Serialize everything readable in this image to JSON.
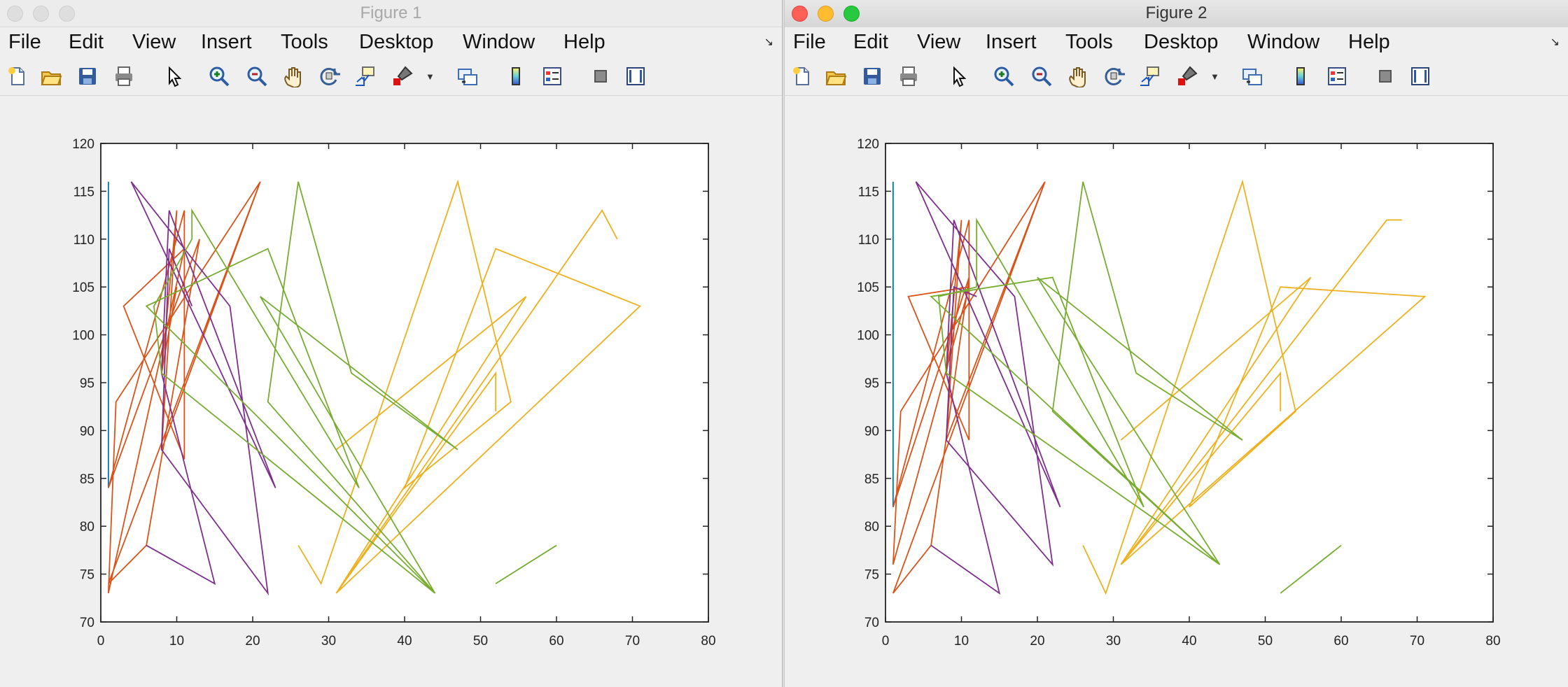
{
  "figures": [
    {
      "title": "Figure 1",
      "active": false,
      "menu": [
        "File",
        "Edit",
        "View",
        "Insert",
        "Tools",
        "Desktop",
        "Window",
        "Help"
      ]
    },
    {
      "title": "Figure 2",
      "active": true,
      "menu": [
        "File",
        "Edit",
        "View",
        "Insert",
        "Tools",
        "Desktop",
        "Window",
        "Help"
      ]
    }
  ],
  "toolbar_icons": [
    "new-figure-icon",
    "open-file-icon",
    "save-icon",
    "print-icon",
    "edit-plot-icon",
    "zoom-in-icon",
    "zoom-out-icon",
    "pan-icon",
    "rotate-3d-icon",
    "data-cursor-icon",
    "brush-icon",
    "link-plot-icon",
    "colorbar-icon",
    "legend-icon",
    "hide-plot-tools-icon",
    "show-plot-tools-icon"
  ],
  "colors": {
    "blue": "#0072bd",
    "red": "#d95319",
    "yellow": "#edb120",
    "purple": "#7e2f8e",
    "green": "#77ac30"
  },
  "chart_data": [
    {
      "type": "line",
      "xlim": [
        0,
        80
      ],
      "ylim": [
        70,
        120
      ],
      "xticks": [
        0,
        10,
        20,
        30,
        40,
        50,
        60,
        70,
        80
      ],
      "yticks": [
        70,
        75,
        80,
        85,
        90,
        95,
        100,
        105,
        110,
        115,
        120
      ],
      "grid": false,
      "series": [
        {
          "color": "blue",
          "points": [
            [
              1,
              116
            ],
            [
              1,
              84
            ]
          ]
        },
        {
          "color": "red",
          "points": [
            [
              21,
              116
            ],
            [
              1,
              74
            ],
            [
              6,
              78
            ],
            [
              13,
              110
            ],
            [
              1,
              84
            ],
            [
              11,
              113
            ],
            [
              11,
              87
            ],
            [
              3,
              103
            ],
            [
              11,
              109
            ],
            [
              1,
              73
            ],
            [
              2,
              93
            ],
            [
              21,
              116
            ],
            [
              8,
              88
            ],
            [
              10,
              113
            ],
            [
              8,
              96
            ],
            [
              10,
              105
            ]
          ]
        },
        {
          "color": "yellow",
          "points": [
            [
              26,
              78
            ],
            [
              29,
              74
            ],
            [
              47,
              116
            ],
            [
              54,
              93
            ],
            [
              40,
              84
            ],
            [
              52,
              109
            ],
            [
              71,
              103
            ],
            [
              31,
              73
            ],
            [
              66,
              113
            ],
            [
              68,
              110
            ]
          ]
        },
        {
          "color": "yellow",
          "points": [
            [
              31,
              88
            ],
            [
              56,
              104
            ],
            [
              31,
              73
            ],
            [
              52,
              96
            ],
            [
              52,
              92
            ]
          ]
        },
        {
          "color": "purple",
          "points": [
            [
              6,
              78
            ],
            [
              15,
              74
            ],
            [
              8,
              96
            ],
            [
              9,
              113
            ],
            [
              23,
              84
            ],
            [
              4,
              116
            ],
            [
              17,
              103
            ],
            [
              22,
              73
            ],
            [
              8,
              88
            ],
            [
              9,
              109
            ],
            [
              12,
              103
            ]
          ]
        },
        {
          "color": "green",
          "points": [
            [
              12,
              110
            ],
            [
              12,
              113
            ],
            [
              34,
              84
            ],
            [
              22,
              109
            ],
            [
              6,
              103
            ],
            [
              44,
              73
            ],
            [
              22,
              93
            ],
            [
              26,
              116
            ],
            [
              33,
              96
            ],
            [
              47,
              88
            ],
            [
              21,
              104
            ],
            [
              44,
              73
            ],
            [
              8,
              96
            ],
            [
              7,
              103
            ],
            [
              12,
              110
            ]
          ]
        },
        {
          "color": "green",
          "points": [
            [
              52,
              74
            ],
            [
              60,
              78
            ]
          ]
        }
      ]
    },
    {
      "type": "line",
      "xlim": [
        0,
        80
      ],
      "ylim": [
        70,
        120
      ],
      "xticks": [
        0,
        10,
        20,
        30,
        40,
        50,
        60,
        70,
        80
      ],
      "yticks": [
        70,
        75,
        80,
        85,
        90,
        95,
        100,
        105,
        110,
        115,
        120
      ],
      "grid": false,
      "series": [
        {
          "color": "blue",
          "points": [
            [
              1,
              116
            ],
            [
              1,
              82
            ]
          ]
        },
        {
          "color": "red",
          "points": [
            [
              21,
              116
            ],
            [
              1,
              73
            ],
            [
              6,
              78
            ],
            [
              11,
              106
            ],
            [
              1,
              82
            ],
            [
              11,
              112
            ],
            [
              11,
              89
            ],
            [
              3,
              104
            ],
            [
              11,
              105
            ],
            [
              1,
              76
            ],
            [
              2,
              92
            ],
            [
              21,
              116
            ],
            [
              8,
              89
            ],
            [
              10,
              112
            ],
            [
              8,
              96
            ],
            [
              10,
              105
            ]
          ]
        },
        {
          "color": "yellow",
          "points": [
            [
              26,
              78
            ],
            [
              29,
              73
            ],
            [
              47,
              116
            ],
            [
              54,
              92
            ],
            [
              40,
              82
            ],
            [
              52,
              105
            ],
            [
              71,
              104
            ],
            [
              31,
              76
            ],
            [
              66,
              112
            ],
            [
              68,
              112
            ]
          ]
        },
        {
          "color": "yellow",
          "points": [
            [
              31,
              89
            ],
            [
              56,
              106
            ],
            [
              31,
              76
            ],
            [
              52,
              96
            ],
            [
              52,
              92
            ]
          ]
        },
        {
          "color": "purple",
          "points": [
            [
              6,
              78
            ],
            [
              15,
              73
            ],
            [
              8,
              96
            ],
            [
              9,
              112
            ],
            [
              23,
              82
            ],
            [
              4,
              116
            ],
            [
              17,
              104
            ],
            [
              22,
              76
            ],
            [
              8,
              89
            ],
            [
              9,
              105
            ],
            [
              12,
              104
            ]
          ]
        },
        {
          "color": "green",
          "points": [
            [
              12,
              105
            ],
            [
              12,
              112
            ],
            [
              34,
              82
            ],
            [
              22,
              106
            ],
            [
              6,
              104
            ],
            [
              44,
              76
            ],
            [
              22,
              92
            ],
            [
              26,
              116
            ],
            [
              33,
              96
            ],
            [
              47,
              89
            ],
            [
              20,
              106
            ],
            [
              44,
              76
            ],
            [
              8,
              96
            ],
            [
              7,
              104
            ],
            [
              12,
              105
            ]
          ]
        },
        {
          "color": "green",
          "points": [
            [
              52,
              73
            ],
            [
              60,
              78
            ]
          ]
        }
      ]
    }
  ]
}
